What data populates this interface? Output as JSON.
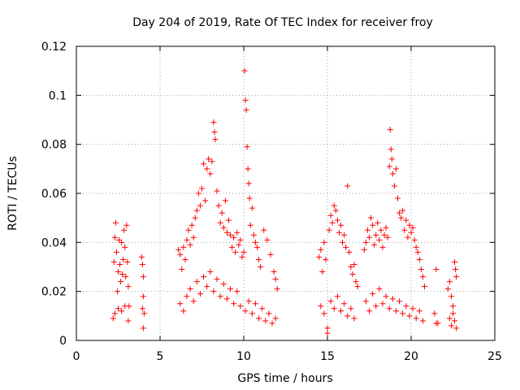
{
  "chart_data": {
    "type": "scatter",
    "title": "Day 204 of 2019, Rate Of TEC Index for receiver froy",
    "xlabel": "GPS time / hours",
    "ylabel": "ROTI / TECUs",
    "xlim": [
      0,
      25
    ],
    "ylim": [
      0,
      0.12
    ],
    "xticks": [
      0,
      5,
      10,
      15,
      20,
      25
    ],
    "yticks": [
      0,
      0.02,
      0.04,
      0.06,
      0.08,
      0.1,
      0.12
    ],
    "xtick_labels": [
      "0",
      "5",
      "10",
      "15",
      "20",
      "25"
    ],
    "ytick_labels": [
      "0",
      "0.02",
      "0.04",
      "0.06",
      "0.08",
      "0.1",
      "0.12"
    ],
    "grid": true,
    "marker": "+",
    "color": "#ff0000",
    "series": [
      {
        "name": "ROTI",
        "points": [
          [
            2.2,
            0.009
          ],
          [
            2.25,
            0.032
          ],
          [
            2.3,
            0.042
          ],
          [
            2.35,
            0.048
          ],
          [
            2.4,
            0.036
          ],
          [
            2.45,
            0.02
          ],
          [
            2.5,
            0.028
          ],
          [
            2.55,
            0.041
          ],
          [
            2.6,
            0.031
          ],
          [
            2.65,
            0.024
          ],
          [
            2.7,
            0.04
          ],
          [
            2.75,
            0.027
          ],
          [
            2.8,
            0.033
          ],
          [
            2.85,
            0.045
          ],
          [
            2.9,
            0.038
          ],
          [
            2.95,
            0.026
          ],
          [
            3.0,
            0.047
          ],
          [
            3.05,
            0.032
          ],
          [
            3.1,
            0.022
          ],
          [
            3.15,
            0.014
          ],
          [
            2.3,
            0.011
          ],
          [
            2.5,
            0.013
          ],
          [
            2.7,
            0.012
          ],
          [
            2.9,
            0.014
          ],
          [
            3.1,
            0.008
          ],
          [
            3.9,
            0.034
          ],
          [
            3.95,
            0.031
          ],
          [
            4.0,
            0.026
          ],
          [
            4.0,
            0.018
          ],
          [
            3.95,
            0.013
          ],
          [
            4.05,
            0.011
          ],
          [
            4.0,
            0.005
          ],
          [
            6.1,
            0.037
          ],
          [
            6.2,
            0.035
          ],
          [
            6.3,
            0.029
          ],
          [
            6.4,
            0.038
          ],
          [
            6.5,
            0.033
          ],
          [
            6.6,
            0.041
          ],
          [
            6.7,
            0.045
          ],
          [
            6.8,
            0.039
          ],
          [
            6.9,
            0.047
          ],
          [
            7.0,
            0.042
          ],
          [
            7.1,
            0.05
          ],
          [
            7.2,
            0.053
          ],
          [
            7.3,
            0.06
          ],
          [
            7.4,
            0.055
          ],
          [
            7.5,
            0.062
          ],
          [
            7.6,
            0.072
          ],
          [
            7.7,
            0.057
          ],
          [
            7.8,
            0.07
          ],
          [
            7.9,
            0.074
          ],
          [
            8.0,
            0.068
          ],
          [
            8.1,
            0.073
          ],
          [
            8.2,
            0.089
          ],
          [
            8.25,
            0.085
          ],
          [
            8.3,
            0.082
          ],
          [
            8.4,
            0.061
          ],
          [
            8.5,
            0.055
          ],
          [
            8.6,
            0.048
          ],
          [
            8.7,
            0.052
          ],
          [
            8.8,
            0.046
          ],
          [
            8.9,
            0.057
          ],
          [
            9.0,
            0.044
          ],
          [
            9.1,
            0.049
          ],
          [
            9.2,
            0.043
          ],
          [
            9.3,
            0.038
          ],
          [
            9.4,
            0.042
          ],
          [
            9.5,
            0.036
          ],
          [
            9.6,
            0.044
          ],
          [
            9.7,
            0.039
          ],
          [
            9.8,
            0.041
          ],
          [
            9.9,
            0.034
          ],
          [
            6.2,
            0.015
          ],
          [
            6.4,
            0.012
          ],
          [
            6.6,
            0.018
          ],
          [
            6.8,
            0.021
          ],
          [
            7.0,
            0.016
          ],
          [
            7.2,
            0.024
          ],
          [
            7.4,
            0.019
          ],
          [
            7.6,
            0.026
          ],
          [
            7.8,
            0.022
          ],
          [
            8.0,
            0.028
          ],
          [
            8.2,
            0.02
          ],
          [
            8.4,
            0.025
          ],
          [
            8.6,
            0.018
          ],
          [
            8.8,
            0.023
          ],
          [
            9.0,
            0.017
          ],
          [
            9.2,
            0.021
          ],
          [
            9.4,
            0.015
          ],
          [
            9.6,
            0.02
          ],
          [
            9.8,
            0.014
          ],
          [
            10.0,
            0.036
          ],
          [
            10.05,
            0.11
          ],
          [
            10.1,
            0.098
          ],
          [
            10.15,
            0.094
          ],
          [
            10.2,
            0.079
          ],
          [
            10.25,
            0.07
          ],
          [
            10.3,
            0.064
          ],
          [
            10.35,
            0.058
          ],
          [
            10.4,
            0.047
          ],
          [
            10.5,
            0.054
          ],
          [
            10.6,
            0.043
          ],
          [
            10.7,
            0.04
          ],
          [
            10.8,
            0.038
          ],
          [
            10.9,
            0.033
          ],
          [
            11.0,
            0.03
          ],
          [
            11.2,
            0.045
          ],
          [
            11.4,
            0.041
          ],
          [
            11.6,
            0.035
          ],
          [
            11.8,
            0.028
          ],
          [
            11.9,
            0.025
          ],
          [
            12.0,
            0.021
          ],
          [
            10.1,
            0.012
          ],
          [
            10.3,
            0.016
          ],
          [
            10.5,
            0.011
          ],
          [
            10.7,
            0.015
          ],
          [
            10.9,
            0.009
          ],
          [
            11.1,
            0.013
          ],
          [
            11.3,
            0.008
          ],
          [
            11.5,
            0.011
          ],
          [
            11.7,
            0.007
          ],
          [
            11.9,
            0.009
          ],
          [
            14.5,
            0.034
          ],
          [
            14.6,
            0.037
          ],
          [
            14.7,
            0.028
          ],
          [
            14.8,
            0.04
          ],
          [
            14.9,
            0.033
          ],
          [
            15.0,
            0.005
          ],
          [
            15.0,
            0.003
          ],
          [
            15.1,
            0.045
          ],
          [
            15.2,
            0.051
          ],
          [
            15.3,
            0.048
          ],
          [
            15.4,
            0.055
          ],
          [
            15.5,
            0.053
          ],
          [
            15.6,
            0.049
          ],
          [
            15.7,
            0.044
          ],
          [
            15.8,
            0.047
          ],
          [
            15.9,
            0.04
          ],
          [
            16.0,
            0.043
          ],
          [
            16.1,
            0.038
          ],
          [
            16.2,
            0.063
          ],
          [
            16.3,
            0.036
          ],
          [
            16.4,
            0.03
          ],
          [
            16.5,
            0.027
          ],
          [
            16.6,
            0.031
          ],
          [
            16.7,
            0.024
          ],
          [
            16.8,
            0.022
          ],
          [
            14.6,
            0.014
          ],
          [
            14.8,
            0.011
          ],
          [
            15.2,
            0.016
          ],
          [
            15.4,
            0.013
          ],
          [
            15.6,
            0.018
          ],
          [
            15.8,
            0.012
          ],
          [
            16.0,
            0.015
          ],
          [
            16.2,
            0.01
          ],
          [
            16.4,
            0.013
          ],
          [
            16.6,
            0.009
          ],
          [
            17.2,
            0.037
          ],
          [
            17.3,
            0.04
          ],
          [
            17.4,
            0.045
          ],
          [
            17.5,
            0.042
          ],
          [
            17.6,
            0.05
          ],
          [
            17.7,
            0.047
          ],
          [
            17.8,
            0.039
          ],
          [
            17.9,
            0.043
          ],
          [
            18.0,
            0.048
          ],
          [
            18.1,
            0.041
          ],
          [
            18.2,
            0.045
          ],
          [
            18.3,
            0.038
          ],
          [
            18.4,
            0.043
          ],
          [
            18.5,
            0.046
          ],
          [
            18.6,
            0.042
          ],
          [
            18.7,
            0.071
          ],
          [
            18.75,
            0.086
          ],
          [
            18.8,
            0.078
          ],
          [
            18.85,
            0.074
          ],
          [
            18.9,
            0.068
          ],
          [
            19.0,
            0.063
          ],
          [
            19.1,
            0.07
          ],
          [
            19.2,
            0.058
          ],
          [
            19.3,
            0.052
          ],
          [
            19.4,
            0.05
          ],
          [
            19.5,
            0.053
          ],
          [
            19.6,
            0.045
          ],
          [
            19.7,
            0.049
          ],
          [
            19.8,
            0.042
          ],
          [
            19.9,
            0.047
          ],
          [
            20.0,
            0.044
          ],
          [
            20.1,
            0.046
          ],
          [
            20.2,
            0.041
          ],
          [
            20.3,
            0.038
          ],
          [
            20.4,
            0.036
          ],
          [
            20.5,
            0.033
          ],
          [
            20.6,
            0.029
          ],
          [
            20.7,
            0.026
          ],
          [
            20.8,
            0.022
          ],
          [
            17.3,
            0.016
          ],
          [
            17.5,
            0.012
          ],
          [
            17.7,
            0.019
          ],
          [
            17.9,
            0.014
          ],
          [
            18.1,
            0.021
          ],
          [
            18.3,
            0.015
          ],
          [
            18.5,
            0.018
          ],
          [
            18.7,
            0.013
          ],
          [
            18.9,
            0.017
          ],
          [
            19.1,
            0.012
          ],
          [
            19.3,
            0.016
          ],
          [
            19.5,
            0.011
          ],
          [
            19.7,
            0.014
          ],
          [
            19.9,
            0.01
          ],
          [
            20.1,
            0.013
          ],
          [
            20.3,
            0.009
          ],
          [
            20.5,
            0.012
          ],
          [
            20.7,
            0.008
          ],
          [
            21.5,
            0.029
          ],
          [
            21.4,
            0.011
          ],
          [
            21.5,
            0.007
          ],
          [
            21.6,
            0.007
          ],
          [
            22.2,
            0.021
          ],
          [
            22.3,
            0.024
          ],
          [
            22.4,
            0.018
          ],
          [
            22.5,
            0.014
          ],
          [
            22.6,
            0.032
          ],
          [
            22.65,
            0.029
          ],
          [
            22.7,
            0.026
          ],
          [
            22.3,
            0.009
          ],
          [
            22.4,
            0.006
          ],
          [
            22.5,
            0.011
          ],
          [
            22.6,
            0.008
          ],
          [
            22.7,
            0.005
          ]
        ]
      }
    ]
  }
}
